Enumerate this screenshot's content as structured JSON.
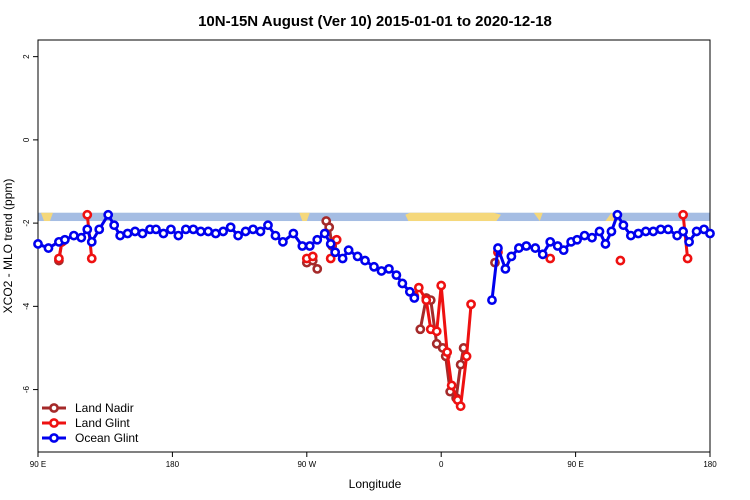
{
  "chart_data": {
    "type": "line",
    "title": "10N-15N August (Ver 10)   2015-01-01 to 2020-12-18",
    "xlabel": "Longitude",
    "ylabel": "XCO2 - MLO trend (ppm)",
    "x_ticks": [
      {
        "value": 90,
        "label": "90 E"
      },
      {
        "value": 180,
        "label": "180"
      },
      {
        "value": 270,
        "label": "90 W"
      },
      {
        "value": 360,
        "label": "0"
      },
      {
        "value": 450,
        "label": "90 E"
      },
      {
        "value": 540,
        "label": "180"
      }
    ],
    "y_ticks": [
      {
        "value": 2,
        "label": "2"
      },
      {
        "value": 0,
        "label": "0"
      },
      {
        "value": -2,
        "label": "-2"
      },
      {
        "value": -4,
        "label": "-4"
      },
      {
        "value": -6,
        "label": "-6"
      }
    ],
    "xlim": [
      90,
      540
    ],
    "ylim": [
      -7.5,
      2.4
    ],
    "legend_position": "bottom-left",
    "land_band": {
      "y_range": [
        -1.75,
        -1.95
      ],
      "ocean_color": "#a5bde3",
      "land_color": "#f5d87b"
    },
    "series": [
      {
        "name": "Land Nadir",
        "color": "#a52a2a",
        "segments": [
          [
            [
              104,
              -2.9
            ],
            [
              106,
              -2.45
            ]
          ],
          [
            [
              270,
              -2.95
            ],
            [
              274,
              -2.9
            ],
            [
              277,
              -3.1
            ]
          ],
          [
            [
              283,
              -1.95
            ],
            [
              285,
              -2.1
            ],
            [
              287,
              -2.55
            ]
          ],
          [
            [
              346,
              -4.55
            ],
            [
              350,
              -3.8
            ],
            [
              353,
              -3.85
            ],
            [
              357,
              -4.9
            ],
            [
              361,
              -5.0
            ],
            [
              363,
              -5.2
            ],
            [
              366,
              -6.05
            ],
            [
              370,
              -6.2
            ],
            [
              373,
              -5.4
            ],
            [
              375,
              -5.0
            ]
          ],
          [
            [
              396,
              -2.95
            ]
          ]
        ]
      },
      {
        "name": "Land Glint",
        "color": "#ee1111",
        "segments": [
          [
            [
              104,
              -2.85
            ],
            [
              106,
              -2.45
            ]
          ],
          [
            [
              123,
              -1.8
            ],
            [
              126,
              -2.85
            ]
          ],
          [
            [
              270,
              -2.85
            ],
            [
              274,
              -2.8
            ]
          ],
          [
            [
              286,
              -2.85
            ],
            [
              290,
              -2.4
            ]
          ],
          [
            [
              342,
              -3.75
            ],
            [
              345,
              -3.55
            ],
            [
              350,
              -3.85
            ],
            [
              353,
              -4.55
            ],
            [
              357,
              -4.6
            ],
            [
              360,
              -3.5
            ],
            [
              364,
              -5.1
            ],
            [
              367,
              -5.9
            ],
            [
              371,
              -6.25
            ],
            [
              373,
              -6.4
            ],
            [
              377,
              -5.2
            ],
            [
              380,
              -3.95
            ]
          ],
          [
            [
              398,
              -2.7
            ]
          ],
          [
            [
              433,
              -2.85
            ]
          ],
          [
            [
              480,
              -2.9
            ]
          ],
          [
            [
              522,
              -1.8
            ],
            [
              525,
              -2.85
            ]
          ]
        ]
      },
      {
        "name": "Ocean Glint",
        "color": "#0000ee",
        "segments": [
          [
            [
              90,
              -2.5
            ],
            [
              97,
              -2.6
            ],
            [
              104,
              -2.45
            ],
            [
              108,
              -2.4
            ],
            [
              114,
              -2.3
            ],
            [
              119,
              -2.35
            ],
            [
              123,
              -2.15
            ],
            [
              126,
              -2.45
            ],
            [
              131,
              -2.15
            ],
            [
              137,
              -1.8
            ],
            [
              141,
              -2.05
            ],
            [
              145,
              -2.3
            ],
            [
              150,
              -2.25
            ],
            [
              155,
              -2.2
            ],
            [
              160,
              -2.25
            ],
            [
              165,
              -2.15
            ],
            [
              169,
              -2.15
            ],
            [
              174,
              -2.25
            ],
            [
              179,
              -2.15
            ],
            [
              184,
              -2.3
            ],
            [
              189,
              -2.15
            ],
            [
              194,
              -2.15
            ],
            [
              199,
              -2.2
            ],
            [
              204,
              -2.2
            ],
            [
              209,
              -2.25
            ],
            [
              214,
              -2.2
            ],
            [
              219,
              -2.1
            ],
            [
              224,
              -2.3
            ],
            [
              229,
              -2.2
            ],
            [
              234,
              -2.15
            ],
            [
              239,
              -2.2
            ],
            [
              244,
              -2.05
            ],
            [
              249,
              -2.3
            ],
            [
              254,
              -2.45
            ],
            [
              261,
              -2.25
            ],
            [
              267,
              -2.55
            ],
            [
              272,
              -2.55
            ],
            [
              277,
              -2.4
            ],
            [
              282,
              -2.25
            ],
            [
              286,
              -2.5
            ],
            [
              289,
              -2.7
            ],
            [
              294,
              -2.85
            ],
            [
              298,
              -2.65
            ],
            [
              304,
              -2.8
            ],
            [
              309,
              -2.9
            ],
            [
              315,
              -3.05
            ],
            [
              320,
              -3.15
            ],
            [
              325,
              -3.1
            ],
            [
              330,
              -3.25
            ],
            [
              334,
              -3.45
            ],
            [
              339,
              -3.65
            ],
            [
              342,
              -3.8
            ]
          ],
          [
            [
              394,
              -3.85
            ],
            [
              398,
              -2.6
            ],
            [
              403,
              -3.1
            ],
            [
              407,
              -2.8
            ],
            [
              412,
              -2.6
            ],
            [
              417,
              -2.55
            ],
            [
              423,
              -2.6
            ],
            [
              428,
              -2.75
            ],
            [
              433,
              -2.45
            ],
            [
              438,
              -2.55
            ],
            [
              442,
              -2.65
            ],
            [
              447,
              -2.45
            ],
            [
              451,
              -2.4
            ],
            [
              456,
              -2.3
            ],
            [
              461,
              -2.35
            ],
            [
              466,
              -2.2
            ],
            [
              470,
              -2.5
            ],
            [
              474,
              -2.2
            ],
            [
              478,
              -1.8
            ],
            [
              482,
              -2.05
            ],
            [
              487,
              -2.3
            ],
            [
              492,
              -2.25
            ],
            [
              497,
              -2.2
            ],
            [
              502,
              -2.2
            ],
            [
              507,
              -2.15
            ],
            [
              512,
              -2.15
            ],
            [
              518,
              -2.3
            ],
            [
              522,
              -2.2
            ],
            [
              526,
              -2.45
            ],
            [
              531,
              -2.2
            ],
            [
              536,
              -2.15
            ],
            [
              540,
              -2.25
            ]
          ]
        ]
      }
    ]
  }
}
